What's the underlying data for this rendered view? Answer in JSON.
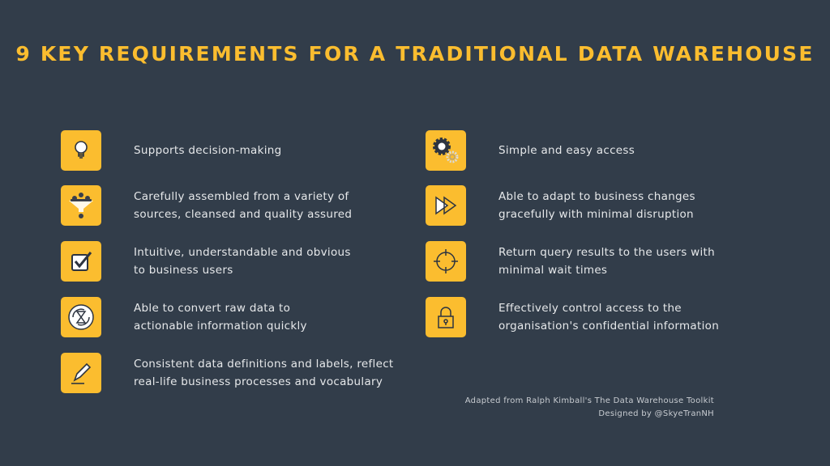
{
  "title": "9 KEY REQUIREMENTS FOR A TRADITIONAL DATA WAREHOUSE",
  "accent_color": "#fbbd2f",
  "background_color": "#323d4a",
  "left_items": [
    {
      "icon": "lightbulb-icon",
      "text": "Supports decision-making"
    },
    {
      "icon": "funnel-icon",
      "text": "Carefully assembled from a variety of\nsources, cleansed and quality assured"
    },
    {
      "icon": "checkbox-icon",
      "text": "Intuitive, understandable and obvious\nto business users"
    },
    {
      "icon": "hourglass-cycle-icon",
      "text": "Able to convert raw data to\nactionable information quickly"
    },
    {
      "icon": "pen-icon",
      "text": "Consistent data definitions and labels, reflect\nreal-life business processes and vocabulary"
    }
  ],
  "right_items": [
    {
      "icon": "gears-icon",
      "text": "Simple and easy access"
    },
    {
      "icon": "fast-forward-icon",
      "text": "Able to adapt to business changes\ngracefully with minimal disruption"
    },
    {
      "icon": "crosshair-icon",
      "text": "Return query results to the users with\nminimal wait times"
    },
    {
      "icon": "lock-icon",
      "text": "Effectively control access to the\norganisation's confidential information"
    }
  ],
  "credits": {
    "source": "Adapted from Ralph Kimball's The Data Warehouse Toolkit",
    "designer": "Designed by @SkyeTranNH"
  }
}
